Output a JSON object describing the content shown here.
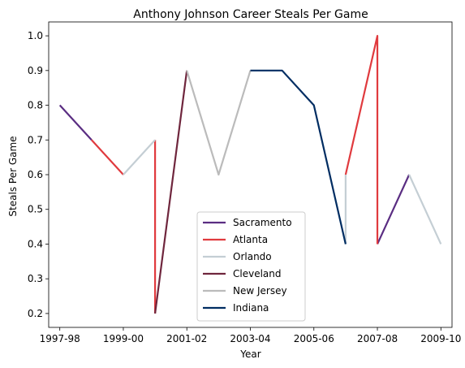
{
  "chart_data": {
    "type": "line",
    "title": "Anthony Johnson  Career Steals Per Game",
    "xlabel": "Year",
    "ylabel": "Steals Per Game",
    "x_categories": [
      "1997-98",
      "1998-99",
      "1999-00",
      "2000-01",
      "2001-02",
      "2002-03",
      "2003-04",
      "2004-05",
      "2005-06",
      "2006-07",
      "2007-08",
      "2008-09",
      "2009-10"
    ],
    "x_tick_labels": [
      "1997-98",
      "1999-00",
      "2001-02",
      "2003-04",
      "2005-06",
      "2007-08",
      "2009-10"
    ],
    "y_ticks": [
      0.2,
      0.3,
      0.4,
      0.5,
      0.6,
      0.7,
      0.8,
      0.9,
      1.0
    ],
    "ylim": [
      0.16,
      1.04
    ],
    "legend_position": "lower-center",
    "grid": false,
    "series": [
      {
        "name": "Sacramento",
        "color": "#5a2d82",
        "segments": [
          [
            [
              "1997-98",
              0.8
            ],
            [
              "1998-99",
              0.7
            ]
          ],
          [
            [
              "2007-08",
              0.4
            ],
            [
              "2008-09",
              0.6
            ]
          ]
        ]
      },
      {
        "name": "Atlanta",
        "color": "#e03a3e",
        "segments": [
          [
            [
              "1998-99",
              0.7
            ],
            [
              "1999-00",
              0.6
            ]
          ],
          [
            [
              "2000-01",
              0.7
            ],
            [
              "2000-01",
              0.2
            ]
          ],
          [
            [
              "2006-07",
              0.6
            ],
            [
              "2007-08",
              1.0
            ],
            [
              "2007-08",
              0.4
            ]
          ]
        ]
      },
      {
        "name": "Orlando",
        "color": "#c4ced4",
        "segments": [
          [
            [
              "1999-00",
              0.6
            ],
            [
              "2000-01",
              0.7
            ]
          ],
          [
            [
              "2006-07",
              0.4
            ],
            [
              "2006-07",
              0.6
            ]
          ],
          [
            [
              "2008-09",
              0.6
            ],
            [
              "2009-10",
              0.4
            ]
          ]
        ]
      },
      {
        "name": "Cleveland",
        "color": "#6f263d",
        "segments": [
          [
            [
              "2000-01",
              0.2
            ],
            [
              "2001-02",
              0.9
            ]
          ]
        ]
      },
      {
        "name": "New Jersey",
        "color": "#bbbbbb",
        "segments": [
          [
            [
              "2001-02",
              0.9
            ],
            [
              "2002-03",
              0.6
            ],
            [
              "2003-04",
              0.9
            ]
          ]
        ]
      },
      {
        "name": "Indiana",
        "color": "#002d62",
        "segments": [
          [
            [
              "2003-04",
              0.9
            ],
            [
              "2004-05",
              0.9
            ],
            [
              "2005-06",
              0.8
            ],
            [
              "2006-07",
              0.4
            ]
          ]
        ]
      }
    ]
  }
}
